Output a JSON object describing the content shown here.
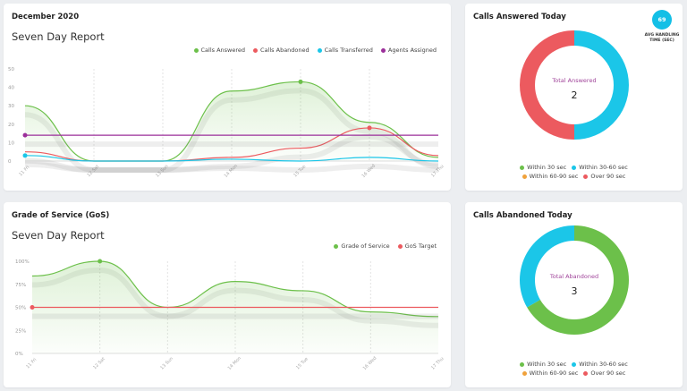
{
  "seven_day": {
    "title": "December 2020",
    "subtitle": "Seven Day Report",
    "legend": [
      {
        "label": "Calls Answered",
        "color": "#6cc04a"
      },
      {
        "label": "Calls Abandoned",
        "color": "#ec5a5f"
      },
      {
        "label": "Calls Transferred",
        "color": "#1bc6e8"
      },
      {
        "label": "Agents Assigned",
        "color": "#9b2f9a"
      }
    ]
  },
  "gos": {
    "title": "Grade of Service (GoS)",
    "subtitle": "Seven Day Report",
    "legend": [
      {
        "label": "Grade of Service",
        "color": "#6cc04a"
      },
      {
        "label": "GoS Target",
        "color": "#ec5a5f"
      }
    ]
  },
  "answered_today": {
    "title": "Calls Answered Today",
    "center_label": "Total Answered",
    "center_value": "2",
    "badge_value": "69",
    "badge_caption": "AVG HANDLING TIME (SEC)",
    "legend_rows": [
      [
        {
          "label": "Within 30 sec",
          "color": "#6cc04a"
        },
        {
          "label": "Within 30-60 sec",
          "color": "#1bc6e8"
        }
      ],
      [
        {
          "label": "Within 60-90 sec",
          "color": "#f0a23c"
        },
        {
          "label": "Over 90 sec",
          "color": "#ec5a5f"
        }
      ]
    ]
  },
  "abandoned_today": {
    "title": "Calls Abandoned Today",
    "center_label": "Total Abandoned",
    "center_value": "3",
    "legend_rows": [
      [
        {
          "label": "Within 30 sec",
          "color": "#6cc04a"
        },
        {
          "label": "Within 30-60 sec",
          "color": "#1bc6e8"
        }
      ],
      [
        {
          "label": "Within 60-90 sec",
          "color": "#f0a23c"
        },
        {
          "label": "Over 90 sec",
          "color": "#ec5a5f"
        }
      ]
    ]
  },
  "chart_data": [
    {
      "type": "line",
      "title": "Seven Day Report",
      "x": [
        "11 Fri",
        "12 Sat",
        "13 Sun",
        "14 Mon",
        "15 Tue",
        "16 Wed",
        "17 Thu"
      ],
      "ylim": [
        0,
        50
      ],
      "yticks": [
        0,
        10,
        20,
        30,
        40,
        50
      ],
      "series": [
        {
          "name": "Calls Answered",
          "color": "#6cc04a",
          "values": [
            30,
            0,
            0,
            38,
            43,
            21,
            2
          ],
          "area": true
        },
        {
          "name": "Calls Abandoned",
          "color": "#ec5a5f",
          "values": [
            5,
            0,
            0,
            2,
            7,
            18,
            3
          ]
        },
        {
          "name": "Calls Transferred",
          "color": "#1bc6e8",
          "values": [
            3,
            0,
            0,
            1,
            0,
            2,
            0
          ]
        },
        {
          "name": "Agents Assigned",
          "color": "#9b2f9a",
          "values": [
            14,
            14,
            14,
            14,
            14,
            14,
            14
          ]
        }
      ]
    },
    {
      "type": "line",
      "title": "Seven Day Report",
      "x": [
        "11 Fri",
        "12 Sat",
        "13 Sun",
        "14 Mon",
        "15 Tue",
        "16 Wed",
        "17 Thu"
      ],
      "ylim": [
        0,
        100
      ],
      "yticks": [
        "0%",
        "25%",
        "50%",
        "75%",
        "100%"
      ],
      "series": [
        {
          "name": "Grade of Service",
          "color": "#6cc04a",
          "values": [
            84,
            100,
            50,
            78,
            68,
            45,
            40
          ],
          "area": true
        },
        {
          "name": "GoS Target",
          "color": "#ec5a5f",
          "values": [
            50,
            50,
            50,
            50,
            50,
            50,
            50
          ]
        }
      ]
    },
    {
      "type": "pie",
      "title": "Calls Answered Today",
      "categories": [
        "Within 30 sec",
        "Within 30-60 sec",
        "Within 60-90 sec",
        "Over 90 sec"
      ],
      "values": [
        0,
        1,
        0,
        1
      ],
      "colors": [
        "#6cc04a",
        "#1bc6e8",
        "#f0a23c",
        "#ec5a5f"
      ]
    },
    {
      "type": "pie",
      "title": "Calls Abandoned Today",
      "categories": [
        "Within 30 sec",
        "Within 30-60 sec",
        "Within 60-90 sec",
        "Over 90 sec"
      ],
      "values": [
        2,
        1,
        0,
        0
      ],
      "colors": [
        "#6cc04a",
        "#1bc6e8",
        "#f0a23c",
        "#ec5a5f"
      ]
    }
  ]
}
